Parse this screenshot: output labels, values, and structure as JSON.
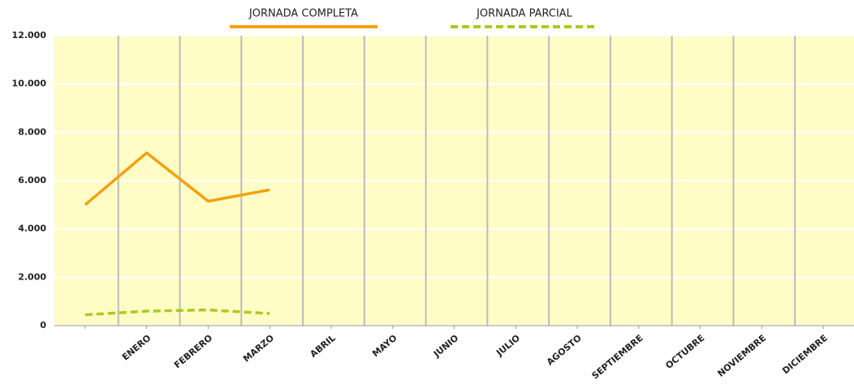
{
  "chart_data": {
    "type": "line",
    "categories": [
      null,
      "ENERO",
      "FEBRERO",
      "MARZO",
      "ABRIL",
      "MAYO",
      "JUNIO",
      "JULIO",
      "AGOSTO",
      "SEPTIEMBRE",
      "OCTUBRE",
      "NOVIEMBRE",
      "DICIEMBRE"
    ],
    "series": [
      {
        "name": "JORNADA COMPLETA",
        "color": "#f5a00f",
        "dash": false,
        "values": [
          5000,
          7150,
          5150,
          5620,
          null,
          null,
          null,
          null,
          null,
          null,
          null,
          null,
          null
        ]
      },
      {
        "name": "JORNADA PARCIAL",
        "color": "#a8cc1a",
        "dash": true,
        "values": [
          450,
          600,
          650,
          500,
          null,
          null,
          null,
          null,
          null,
          null,
          null,
          null,
          null
        ]
      }
    ],
    "ylim": [
      0,
      12000
    ],
    "yticks": [
      0,
      {
        "value": 2000,
        "label": "2.000"
      },
      {
        "value": 4000,
        "label": "4.000"
      },
      {
        "value": 6000,
        "label": "6.000"
      },
      {
        "value": 8000,
        "label": "8.000"
      },
      {
        "value": 10000,
        "label": "10.000"
      },
      {
        "value": 12000,
        "label": "12.000"
      }
    ],
    "grid": true
  }
}
